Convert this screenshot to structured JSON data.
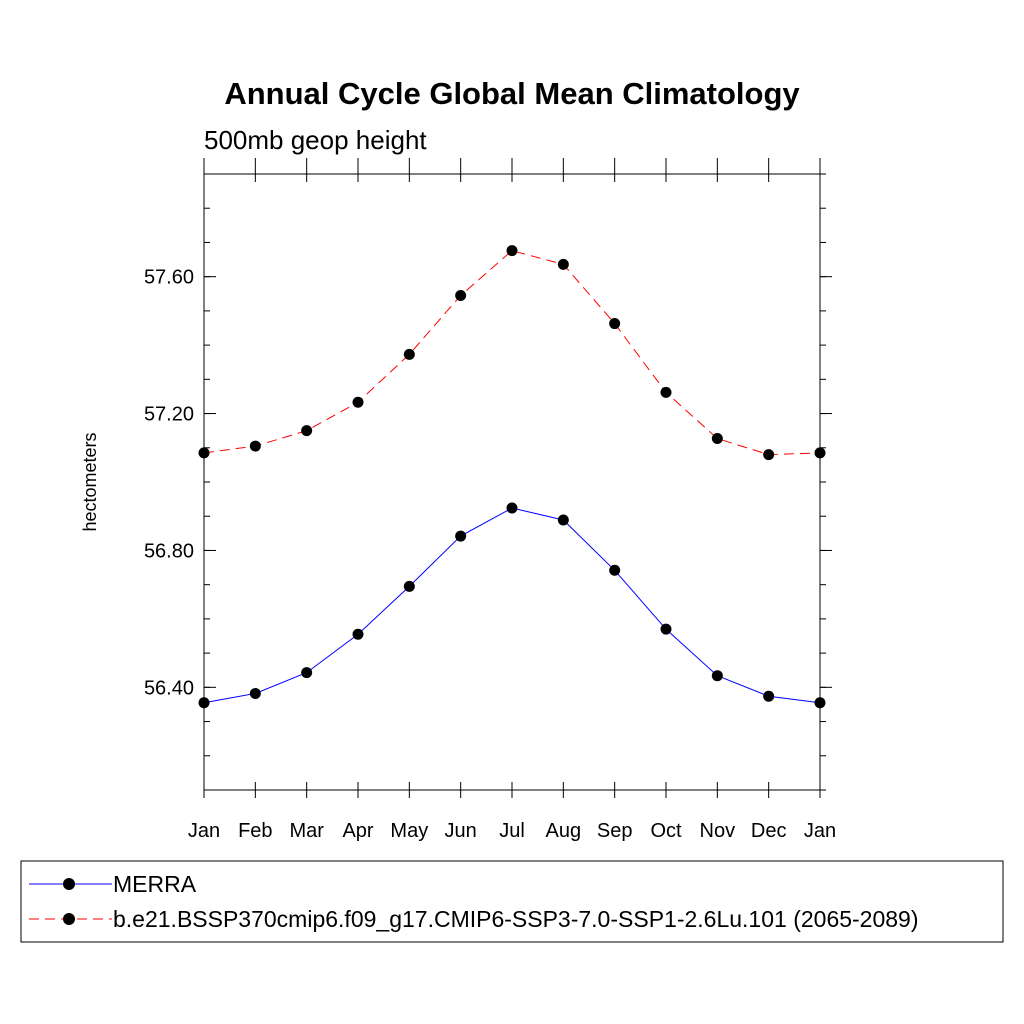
{
  "chart_data": {
    "type": "line",
    "title": "Annual Cycle Global Mean Climatology",
    "subtitle": "500mb geop height",
    "xlabel": "",
    "ylabel": "hectometers",
    "categories": [
      "Jan",
      "Feb",
      "Mar",
      "Apr",
      "May",
      "Jun",
      "Jul",
      "Aug",
      "Sep",
      "Oct",
      "Nov",
      "Dec",
      "Jan"
    ],
    "ylim": [
      56.1,
      57.9
    ],
    "y_major_ticks": [
      56.4,
      56.8,
      57.2,
      57.6
    ],
    "y_tick_labels": [
      "56.40",
      "56.80",
      "57.20",
      "57.60"
    ],
    "y_minor_step": 0.1,
    "grid": false,
    "legend_position": "bottom",
    "series": [
      {
        "name": "MERRA",
        "color": "#0000ff",
        "line_style": "solid",
        "marker": "filled-circle",
        "values": [
          56.355,
          56.382,
          56.443,
          56.555,
          56.695,
          56.842,
          56.924,
          56.889,
          56.742,
          56.57,
          56.434,
          56.374,
          56.355
        ]
      },
      {
        "name": "b.e21.BSSP370cmip6.f09_g17.CMIP6-SSP3-7.0-SSP1-2.6Lu.101 (2065-2089)",
        "color": "#ff0000",
        "line_style": "dashed",
        "marker": "filled-circle",
        "values": [
          57.085,
          57.105,
          57.15,
          57.233,
          57.373,
          57.545,
          57.676,
          57.636,
          57.463,
          57.262,
          57.127,
          57.08,
          57.085
        ]
      }
    ]
  }
}
